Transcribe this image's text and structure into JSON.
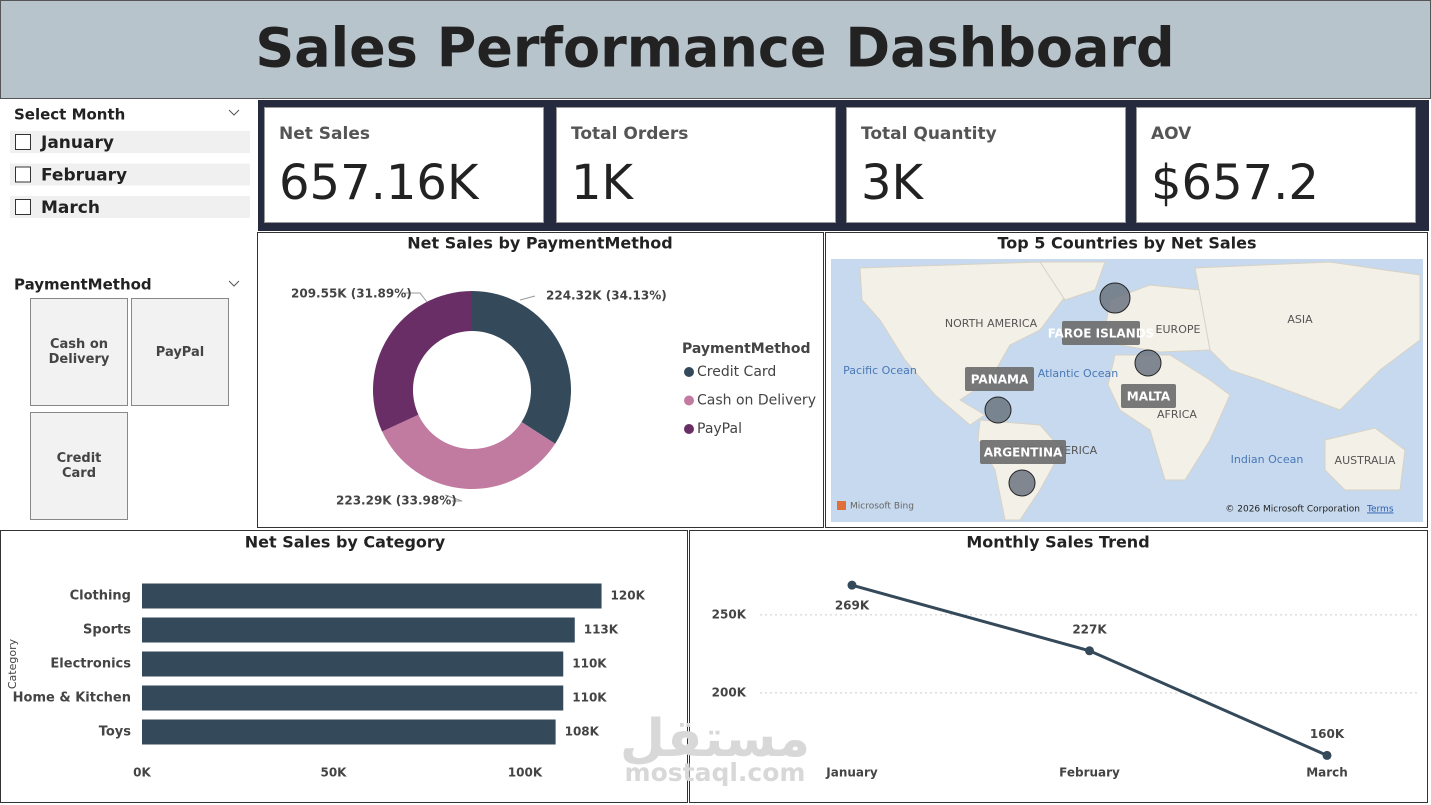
{
  "title": "Sales Performance Dashboard",
  "month_slicer": {
    "title": "Select Month",
    "options": [
      "January",
      "February",
      "March"
    ]
  },
  "payment_slicer": {
    "title": "PaymentMethod",
    "options": [
      "Cash on Delivery",
      "PayPal",
      "Credit Card"
    ]
  },
  "kpis": [
    {
      "label": "Net Sales",
      "value": "657.16K"
    },
    {
      "label": "Total Orders",
      "value": "1K"
    },
    {
      "label": "Total Quantity",
      "value": "3K"
    },
    {
      "label": "AOV",
      "value": "$657.2"
    }
  ],
  "watermark": {
    "arabic": "مستقل",
    "latin": "mostaql.com"
  },
  "chart_data": [
    {
      "type": "donut",
      "title": "Net Sales by PaymentMethod",
      "legend_title": "PaymentMethod",
      "categories": [
        "Credit Card",
        "Cash on Delivery",
        "PayPal"
      ],
      "values": [
        224320,
        223290,
        209550
      ],
      "value_labels": [
        "224.32K (34.13%)",
        "223.29K (33.98%)",
        "209.55K (31.89%)"
      ],
      "colors": [
        "#34495a",
        "#c27ba0",
        "#6a2e67"
      ]
    },
    {
      "type": "map",
      "title": "Top 5 Countries by Net Sales",
      "locations": [
        "FAROE ISLANDS",
        "MALTA",
        "PANAMA",
        "ARGENTINA"
      ],
      "basemap_labels": [
        "NORTH AMERICA",
        "EUROPE",
        "ASIA",
        "Pacific Ocean",
        "Atlantic Ocean",
        "AFRICA",
        "SOUTH AMERICA",
        "Indian Ocean",
        "AUSTRALIA"
      ],
      "attribution": [
        "Microsoft Bing",
        "© 2026 Microsoft Corporation",
        "Terms"
      ]
    },
    {
      "type": "hbar",
      "title": "Net Sales by Category",
      "y_label": "Category",
      "categories": [
        "Clothing",
        "Sports",
        "Electronics",
        "Home & Kitchen",
        "Toys"
      ],
      "values": [
        120000,
        113000,
        110000,
        110000,
        108000
      ],
      "value_labels": [
        "120K",
        "113K",
        "110K",
        "110K",
        "108K"
      ],
      "color": "#34495a",
      "xlim": [
        0,
        135000
      ],
      "xticks": [
        {
          "value": 0,
          "label": "0K"
        },
        {
          "value": 50000,
          "label": "50K"
        },
        {
          "value": 100000,
          "label": "100K"
        }
      ]
    },
    {
      "type": "line",
      "title": "Monthly Sales Trend",
      "categories": [
        "January",
        "February",
        "March"
      ],
      "values": [
        269000,
        227000,
        160000
      ],
      "value_labels": [
        "269K",
        "227K",
        "160K"
      ],
      "color": "#34495a",
      "ylim": [
        150000,
        280000
      ],
      "yticks": [
        {
          "value": 200000,
          "label": "200K"
        },
        {
          "value": 250000,
          "label": "250K"
        }
      ],
      "grid": true
    }
  ]
}
